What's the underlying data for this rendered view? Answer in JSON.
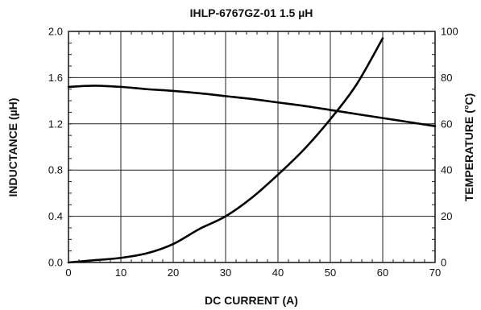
{
  "chart_data": {
    "type": "line",
    "title": "IHLP-6767GZ-01 1.5 µH",
    "xlabel": "DC CURRENT (A)",
    "ylabel_left": "INDUCTANCE (µH)",
    "ylabel_right": "TEMPERATURE (°C)",
    "xlim": [
      0,
      70
    ],
    "ylim_left": [
      0,
      2.0
    ],
    "ylim_right": [
      0,
      100
    ],
    "x_ticks": [
      "0",
      "10",
      "20",
      "30",
      "40",
      "50",
      "60",
      "70"
    ],
    "y_left_ticks": [
      "0.0",
      "0.4",
      "0.8",
      "1.2",
      "1.6",
      "2.0"
    ],
    "y_right_ticks": [
      "0",
      "20",
      "40",
      "60",
      "80",
      "100"
    ],
    "grid": true,
    "series": [
      {
        "axis": "left",
        "x": [
          0,
          5,
          10,
          15,
          20,
          25,
          30,
          35,
          40,
          45,
          50,
          55,
          60,
          65,
          70
        ],
        "y": [
          1.52,
          1.53,
          1.52,
          1.5,
          1.485,
          1.465,
          1.44,
          1.415,
          1.385,
          1.355,
          1.32,
          1.285,
          1.25,
          1.215,
          1.18
        ]
      },
      {
        "axis": "right",
        "x": [
          0,
          5,
          10,
          15,
          20,
          25,
          30,
          35,
          40,
          45,
          50,
          55,
          60
        ],
        "y": [
          0,
          1,
          2,
          4,
          8,
          14.5,
          20,
          28,
          38,
          49,
          62,
          77,
          97
        ]
      }
    ]
  }
}
